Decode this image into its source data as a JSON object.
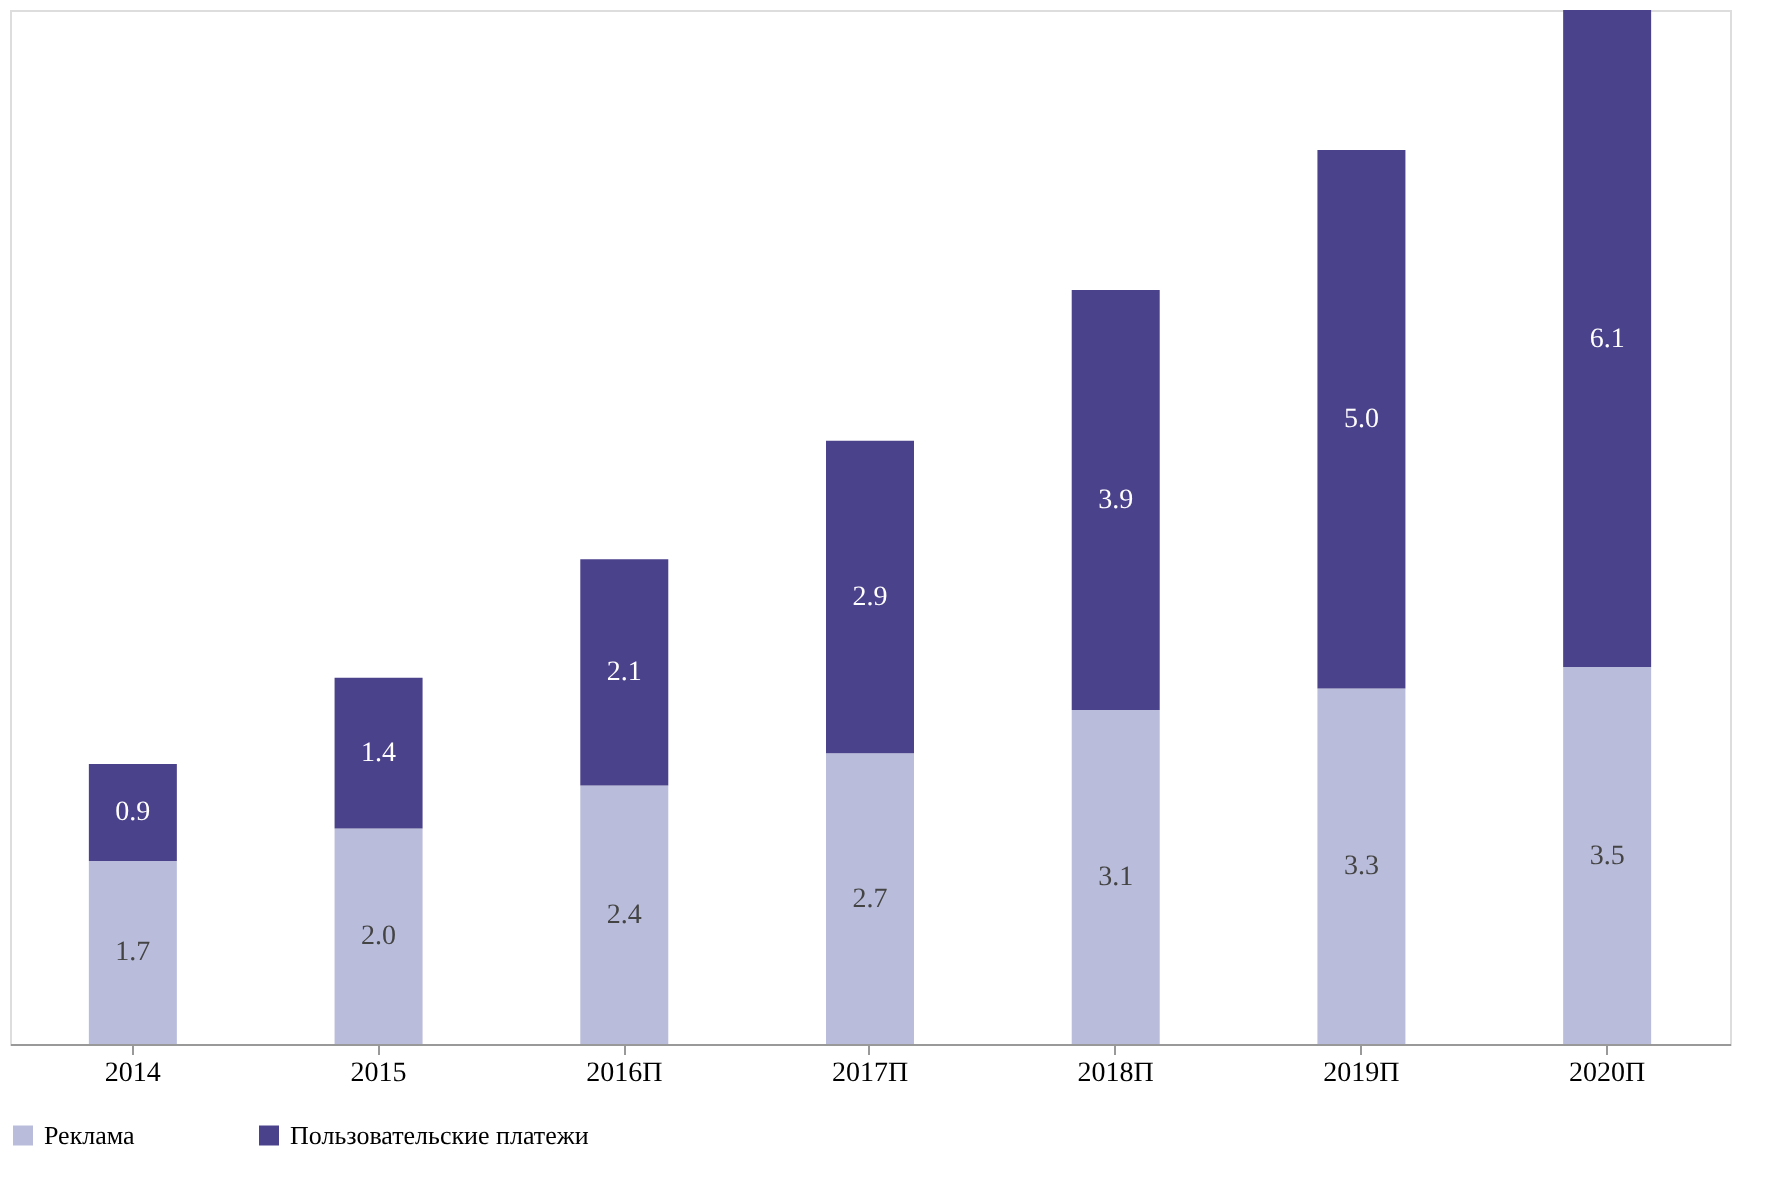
{
  "chart_data": {
    "type": "bar",
    "stacked": true,
    "legend": "bottom",
    "grid": false,
    "tick_labels": "x",
    "categories": [
      "2014",
      "2015",
      "2016П",
      "2017П",
      "2018П",
      "2019П",
      "2020П"
    ],
    "series": [
      {
        "name": "Реклама",
        "color": "#b9bddb",
        "values": [
          1.7,
          2.0,
          2.4,
          2.7,
          3.1,
          3.3,
          3.5
        ],
        "value_labels": [
          "1.7",
          "2.0",
          "2.4",
          "2.7",
          "3.1",
          "3.3",
          "3.5"
        ]
      },
      {
        "name": "Пользовательские платежи",
        "color": "#4b428c",
        "values": [
          0.9,
          1.4,
          2.1,
          2.9,
          3.9,
          5.0,
          6.1
        ],
        "value_labels": [
          "0.9",
          "1.4",
          "2.1",
          "2.9",
          "3.9",
          "5.0",
          "6.1"
        ]
      }
    ]
  }
}
